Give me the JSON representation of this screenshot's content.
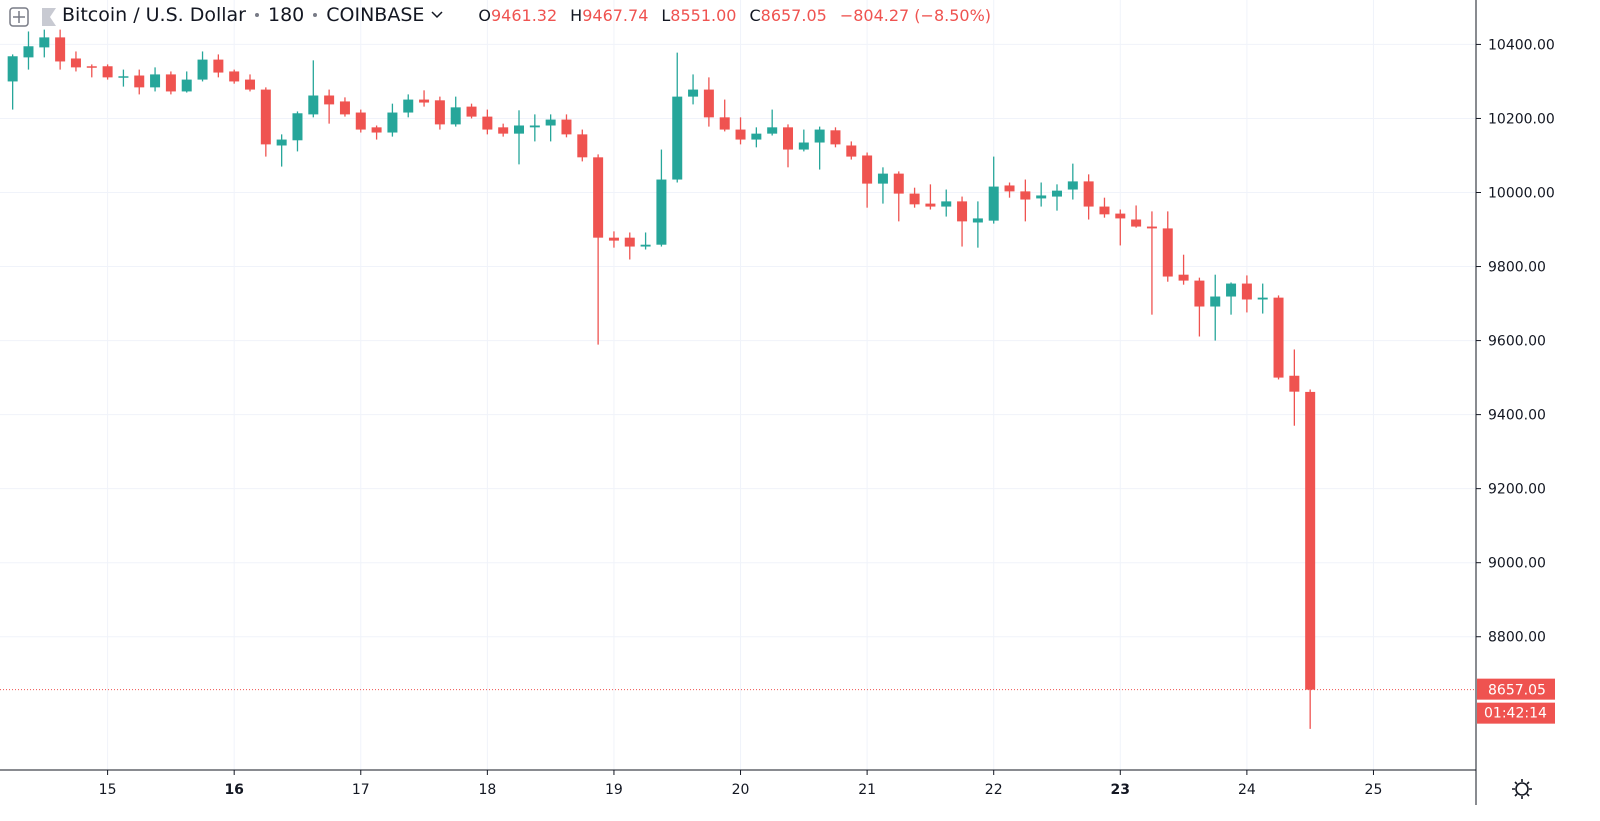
{
  "header": {
    "symbol": "Bitcoin / U.S. Dollar",
    "interval": "180",
    "exchange": "COINBASE",
    "ohlc": [
      {
        "key": "O",
        "label": "9461.32"
      },
      {
        "key": "H",
        "label": "9467.74"
      },
      {
        "key": "L",
        "label": "8551.00"
      },
      {
        "key": "C",
        "label": "8657.05"
      }
    ],
    "change": "−804.27 (−8.50%)"
  },
  "chart_data": {
    "type": "candlestick",
    "x": [
      14.25,
      14.375,
      14.5,
      14.625,
      14.75,
      14.875,
      15,
      15.125,
      15.25,
      15.375,
      15.5,
      15.625,
      15.75,
      15.875,
      16,
      16.125,
      16.25,
      16.375,
      16.5,
      16.625,
      16.75,
      16.875,
      17,
      17.125,
      17.25,
      17.375,
      17.5,
      17.625,
      17.75,
      17.875,
      18,
      18.125,
      18.25,
      18.375,
      18.5,
      18.625,
      18.75,
      18.875,
      19,
      19.125,
      19.25,
      19.375,
      19.5,
      19.625,
      19.75,
      19.875,
      20,
      20.125,
      20.25,
      20.375,
      20.5,
      20.625,
      20.75,
      20.875,
      21,
      21.125,
      21.25,
      21.375,
      21.5,
      21.625,
      21.75,
      21.875,
      22,
      22.125,
      22.25,
      22.375,
      22.5,
      22.625,
      22.75,
      22.875,
      23,
      23.125,
      23.25,
      23.375,
      23.5,
      23.625,
      23.75,
      23.875,
      24,
      24.125,
      24.25,
      24.375,
      24.5
    ],
    "open": [
      10300,
      10365,
      10392,
      10419,
      10362,
      10341,
      10341,
      10312,
      10316,
      10284,
      10319,
      10273,
      10305,
      10359,
      10327,
      10305,
      10278,
      10127,
      10141,
      10211,
      10262,
      10246,
      10216,
      10176,
      10162,
      10216,
      10251,
      10249,
      10184,
      10232,
      10205,
      10176,
      10159,
      10176,
      10181,
      10197,
      10157,
      10095,
      9878,
      9878,
      9854,
      9859,
      10035,
      10259,
      10278,
      10203,
      10170,
      10143,
      10159,
      10176,
      10116,
      10135,
      10168,
      10127,
      10100,
      10024,
      10051,
      9997,
      9970,
      9962,
      9976,
      9919,
      9924,
      10019,
      10003,
      9984,
      9989,
      10008,
      10030,
      9962,
      9943,
      9927,
      9908,
      9903,
      9778,
      9762,
      9692,
      9719,
      9754,
      9711,
      9716,
      9505,
      9461.32
    ],
    "high": [
      10373,
      10435,
      10440,
      10440,
      10381,
      10346,
      10346,
      10332,
      10332,
      10338,
      10327,
      10327,
      10381,
      10373,
      10332,
      10319,
      10284,
      10157,
      10219,
      10357,
      10278,
      10257,
      10224,
      10181,
      10240,
      10265,
      10276,
      10259,
      10259,
      10240,
      10224,
      10186,
      10222,
      10211,
      10211,
      10211,
      10170,
      10103,
      9895,
      9892,
      9892,
      10116,
      10378,
      10319,
      10311,
      10251,
      10203,
      10176,
      10224,
      10184,
      10170,
      10178,
      10176,
      10138,
      10108,
      10068,
      10057,
      10013,
      10022,
      10008,
      9989,
      9976,
      10097,
      10027,
      10035,
      10027,
      10022,
      10078,
      10049,
      9986,
      9954,
      9965,
      9949,
      9949,
      9832,
      9770,
      9778,
      9757,
      9776,
      9754,
      9722,
      9576,
      9467.74
    ],
    "low": [
      10224,
      10332,
      10365,
      10332,
      10327,
      10311,
      10305,
      10286,
      10265,
      10273,
      10265,
      10270,
      10300,
      10311,
      10294,
      10273,
      10097,
      10070,
      10111,
      10203,
      10186,
      10205,
      10162,
      10143,
      10151,
      10203,
      10232,
      10170,
      10178,
      10200,
      10157,
      10151,
      10076,
      10138,
      10138,
      10149,
      10084,
      9589,
      9851,
      9819,
      9846,
      9854,
      10027,
      10238,
      10178,
      10165,
      10130,
      10122,
      10154,
      10068,
      10111,
      10062,
      10122,
      10089,
      9959,
      9970,
      9922,
      9959,
      9954,
      9935,
      9854,
      9851,
      9916,
      9986,
      9922,
      9962,
      9951,
      9981,
      9927,
      9932,
      9857,
      9905,
      9670,
      9759,
      9751,
      9611,
      9600,
      9670,
      9676,
      9673,
      9495,
      9370,
      8551
    ],
    "close": [
      10368,
      10395,
      10419,
      10354,
      10338,
      10338,
      10311,
      10314,
      10284,
      10319,
      10273,
      10305,
      10359,
      10324,
      10300,
      10278,
      10130,
      10143,
      10214,
      10262,
      10238,
      10211,
      10170,
      10162,
      10216,
      10251,
      10243,
      10184,
      10230,
      10205,
      10170,
      10159,
      10181,
      10181,
      10197,
      10157,
      10095,
      9878,
      9870,
      9854,
      9859,
      10035,
      10259,
      10278,
      10203,
      10170,
      10143,
      10159,
      10176,
      10116,
      10135,
      10170,
      10130,
      10097,
      10024,
      10051,
      9997,
      9968,
      9962,
      9976,
      9922,
      9930,
      10016,
      10003,
      9981,
      9992,
      10005,
      10030,
      9962,
      9941,
      9930,
      9908,
      9903,
      9773,
      9762,
      9692,
      9719,
      9754,
      9711,
      9716,
      9500,
      9462,
      8657.05
    ],
    "up_color": "#26a69a",
    "down_color": "#ef5350",
    "xlim": [
      14.15,
      25.81
    ],
    "xticks": [
      15,
      16,
      17,
      18,
      19,
      20,
      21,
      22,
      23,
      24,
      25
    ],
    "xticks_bold": [
      16,
      23
    ],
    "ylim": [
      8440,
      10520
    ],
    "yticks": [
      {
        "value": 8800,
        "label": "8800.00"
      },
      {
        "value": 9000,
        "label": "9000.00"
      },
      {
        "value": 9200,
        "label": "9200.00"
      },
      {
        "value": 9400,
        "label": "9400.00"
      },
      {
        "value": 9600,
        "label": "9600.00"
      },
      {
        "value": 9800,
        "label": "9800.00"
      },
      {
        "value": 10000,
        "label": "10000.00"
      },
      {
        "value": 10200,
        "label": "10200.00"
      },
      {
        "value": 10400,
        "label": "10400.00"
      }
    ],
    "grid": true,
    "last_price_label": "8657.05",
    "countdown": "01:42:14"
  }
}
